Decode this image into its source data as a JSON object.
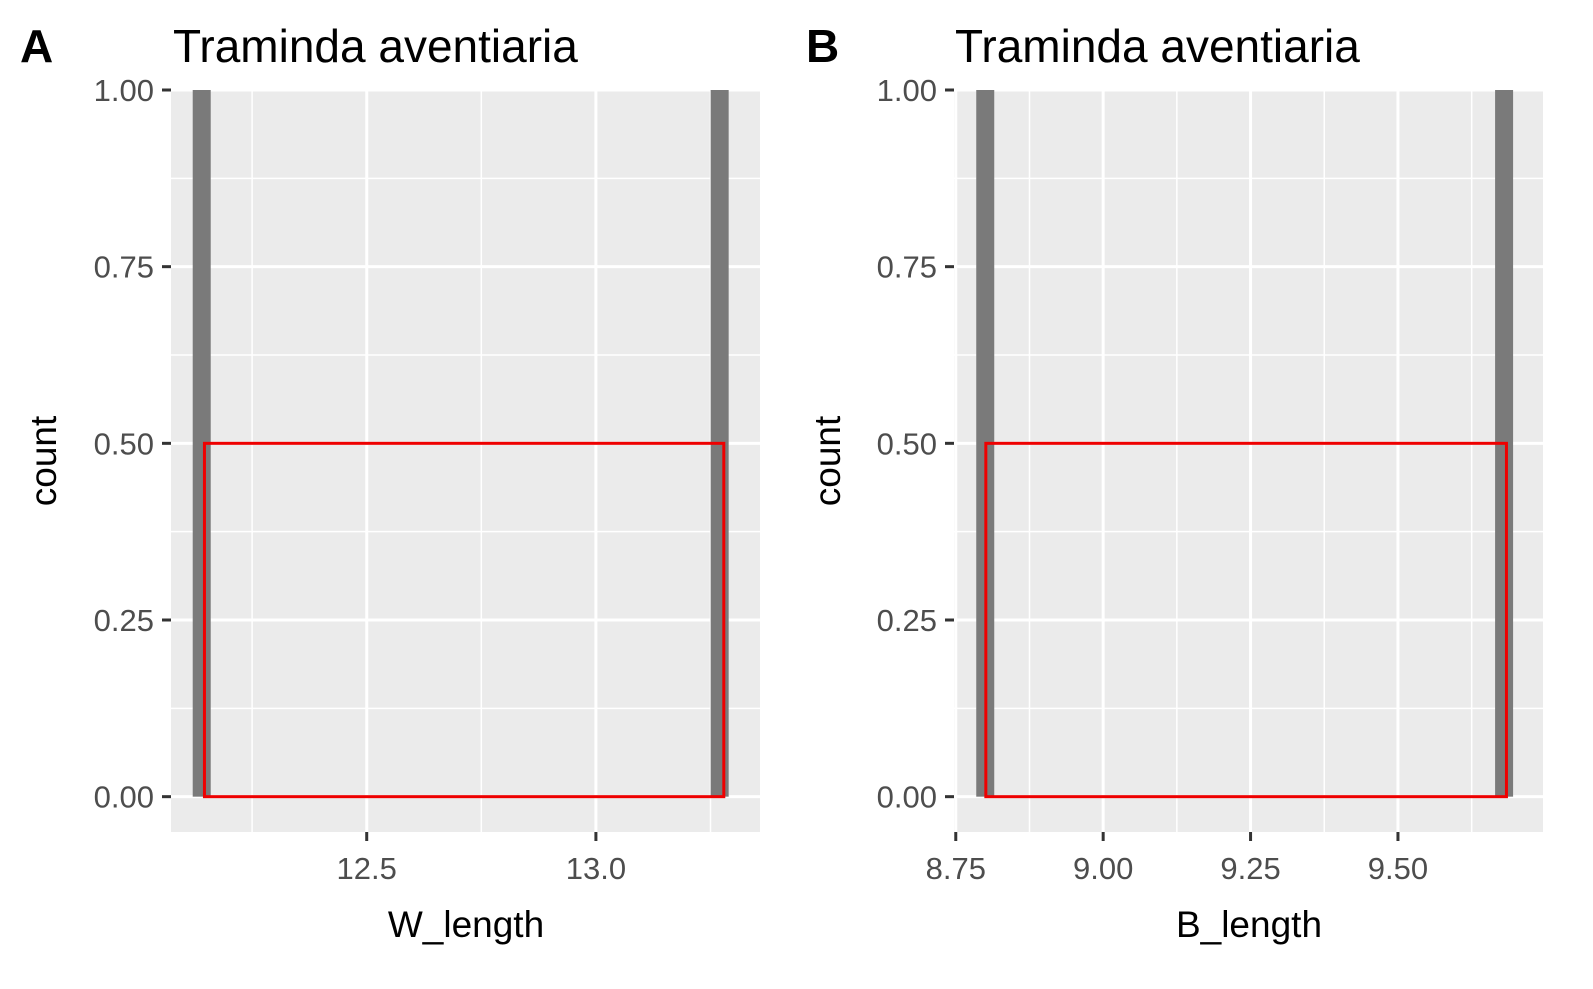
{
  "chart_data": [
    {
      "panel_tag": "A",
      "type": "bar",
      "title": "Traminda aventiaria",
      "xlabel": "W_length",
      "ylabel": "count",
      "ylim": [
        -0.05,
        1.0
      ],
      "yticks": [
        0.0,
        0.25,
        0.5,
        0.75,
        1.0
      ],
      "ytick_labels": [
        "0.00",
        "0.25",
        "0.50",
        "0.75",
        "1.00"
      ],
      "xticks": [
        12.5,
        13.0
      ],
      "xtick_labels": [
        "12.5",
        "13.0"
      ],
      "xlim": [
        12.073,
        13.358
      ],
      "bars": [
        {
          "x": 12.14,
          "count": 1
        },
        {
          "x": 13.27,
          "count": 1
        }
      ],
      "overlay_rect": {
        "x0": 12.146,
        "x1": 13.279,
        "y0": 0,
        "y1": 0.5,
        "color": "#ee0000"
      },
      "colors": {
        "panel_bg": "#ebebeb",
        "bar": "#7a7a7a",
        "grid": "#ffffff",
        "overlay": "#ee0000"
      }
    },
    {
      "panel_tag": "B",
      "type": "bar",
      "title": "Traminda aventiaria",
      "xlabel": "B_length",
      "ylabel": "count",
      "ylim": [
        -0.05,
        1.0
      ],
      "yticks": [
        0.0,
        0.25,
        0.5,
        0.75,
        1.0
      ],
      "ytick_labels": [
        "0.00",
        "0.25",
        "0.50",
        "0.75",
        "1.00"
      ],
      "xticks": [
        8.75,
        9.0,
        9.25,
        9.5
      ],
      "xtick_labels": [
        "8.75",
        "9.00",
        "9.25",
        "9.50"
      ],
      "xlim": [
        8.747,
        9.746
      ],
      "bars": [
        {
          "x": 8.8,
          "count": 1
        },
        {
          "x": 9.68,
          "count": 1
        }
      ],
      "overlay_rect": {
        "x0": 8.801,
        "x1": 9.684,
        "y0": 0,
        "y1": 0.5,
        "color": "#ee0000"
      },
      "colors": {
        "panel_bg": "#ebebeb",
        "bar": "#7a7a7a",
        "grid": "#ffffff",
        "overlay": "#ee0000"
      }
    }
  ]
}
